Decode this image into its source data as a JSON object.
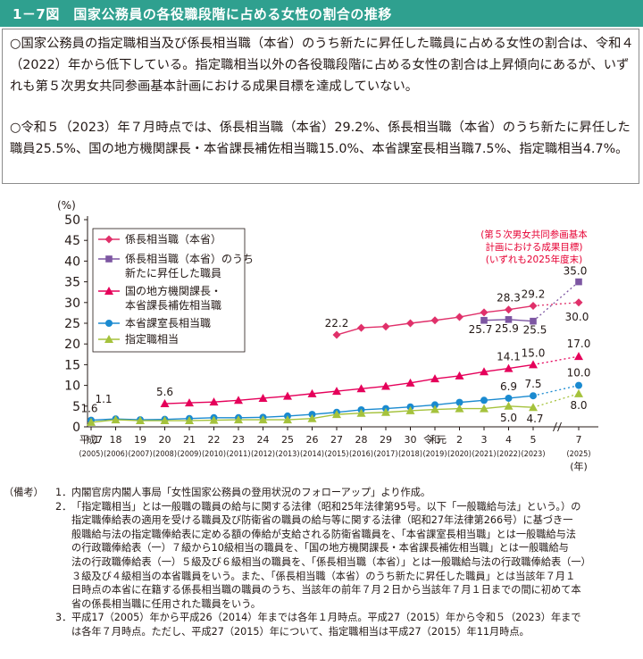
{
  "header": {
    "title": "1－7図　国家公務員の各役職段階に占める女性の割合の推移"
  },
  "summary": {
    "bullets": [
      "○国家公務員の指定職相当及び係長相当職（本省）のうち新たに昇任した職員に占める女性の割合は、令和４（2022）年から低下している。指定職相当以外の各役職段階に占める女性の割合は上昇傾向にあるが、いずれも第５次男女共同参画基本計画における成果目標を達成していない。",
      "○令和５（2023）年７月時点では、係長相当職（本省）29.2%、係長相当職（本省）のうち新たに昇任した職員25.5%、国の地方機関課長・本省課長補佐相当職15.0%、本省課室長相当職7.5%、指定職相当4.7%。"
    ]
  },
  "chart_data": {
    "type": "line",
    "ylabel": "(%)",
    "ylim": [
      0,
      50
    ],
    "yticks": [
      0,
      5,
      10,
      15,
      20,
      25,
      30,
      35,
      40,
      45,
      50
    ],
    "grid": false,
    "legend_position": "top-left",
    "x_labels_era": [
      "平成17",
      "18",
      "19",
      "20",
      "21",
      "22",
      "23",
      "24",
      "25",
      "26",
      "27",
      "28",
      "29",
      "30",
      "令和元",
      "2",
      "3",
      "4",
      "5",
      "7"
    ],
    "x_labels_year": [
      "(2005)",
      "(2006)",
      "(2007)",
      "(2008)",
      "(2009)",
      "(2010)",
      "(2011)",
      "(2012)",
      "(2013)",
      "(2014)",
      "(2015)",
      "(2016)",
      "(2017)",
      "(2018)",
      "(2019)",
      "(2020)",
      "(2021)",
      "(2022)",
      "(2023)",
      "(2025)"
    ],
    "x_unit_label": "(年)",
    "target_annotation": [
      "(第５次男女共同参画基本",
      "計画における成果目標)",
      "(いずれも2025年度末)"
    ],
    "series": [
      {
        "name": "係長相当職（本省）",
        "color": "#e0306a",
        "marker": "diamond",
        "values": [
          null,
          null,
          null,
          null,
          null,
          null,
          null,
          null,
          null,
          null,
          22.2,
          23.9,
          24.2,
          25.0,
          25.7,
          26.5,
          27.6,
          28.3,
          29.2,
          null
        ],
        "target": 30.0,
        "labels": [
          {
            "i": 10,
            "text": "22.2"
          },
          {
            "i": 17,
            "text": "28.3"
          },
          {
            "i": 18,
            "text": "29.2"
          }
        ],
        "target_label": "30.0"
      },
      {
        "name": "係長相当職（本省）のうち新たに昇任した職員",
        "color": "#7d56a2",
        "marker": "square",
        "values": [
          null,
          null,
          null,
          null,
          null,
          null,
          null,
          null,
          null,
          null,
          null,
          null,
          null,
          null,
          null,
          null,
          25.7,
          25.9,
          25.5,
          null
        ],
        "target": 35.0,
        "labels": [
          {
            "i": 16,
            "text": "25.7"
          },
          {
            "i": 17,
            "text": "25.9"
          },
          {
            "i": 18,
            "text": "25.5"
          }
        ],
        "target_label": "35.0"
      },
      {
        "name": "国の地方機関課長・本省課長補佐相当職",
        "color": "#e5005a",
        "marker": "triangle",
        "values": [
          null,
          null,
          null,
          5.6,
          5.8,
          6.0,
          6.4,
          6.9,
          7.4,
          8.0,
          8.6,
          9.2,
          9.8,
          10.6,
          11.6,
          12.3,
          13.3,
          14.1,
          15.0,
          null
        ],
        "target": 17.0,
        "labels": [
          {
            "i": 3,
            "text": "5.6"
          },
          {
            "i": 17,
            "text": "14.1"
          },
          {
            "i": 18,
            "text": "15.0"
          }
        ],
        "target_label": "17.0"
      },
      {
        "name": "本省課室長相当職",
        "color": "#1a8ad0",
        "marker": "circle",
        "values": [
          1.6,
          1.9,
          1.7,
          1.8,
          2.0,
          2.2,
          2.2,
          2.3,
          2.6,
          3.0,
          3.5,
          4.1,
          4.4,
          4.8,
          5.3,
          5.9,
          6.4,
          6.9,
          7.5,
          null
        ],
        "target": 10.0,
        "labels": [
          {
            "i": 0,
            "text": "1.6"
          },
          {
            "i": 17,
            "text": "6.9"
          },
          {
            "i": 18,
            "text": "7.5"
          }
        ],
        "target_label": "10.0"
      },
      {
        "name": "指定職相当",
        "color": "#a5c23c",
        "marker": "triangle",
        "values": [
          1.1,
          1.7,
          1.5,
          1.5,
          1.5,
          1.6,
          1.7,
          1.7,
          1.7,
          2.0,
          3.0,
          3.3,
          3.5,
          3.9,
          4.2,
          4.4,
          4.4,
          5.0,
          4.7,
          null
        ],
        "target": 8.0,
        "labels": [
          {
            "i": 0,
            "text": "1.1"
          },
          {
            "i": 17,
            "text": "5.0"
          },
          {
            "i": 18,
            "text": "4.7"
          }
        ],
        "target_label": "8.0"
      }
    ]
  },
  "notes": {
    "head": "（備考）",
    "items": [
      {
        "num": "1．",
        "lines": [
          "内閣官房内閣人事局「女性国家公務員の登用状況のフォローアップ」より作成。"
        ]
      },
      {
        "num": "2．",
        "lines": [
          "「指定職相当」とは一般職の職員の給与に関する法律（昭和25年法律第95号。以下「一般職給与法」という。）の",
          "指定職俸給表の適用を受ける職員及び防衛省の職員の給与等に関する法律（昭和27年法律第266号）に基づき一",
          "般職給与法の指定職俸給表に定める額の俸給が支給される防衛省職員を、「本省課室長相当職」とは一般職給与法",
          "の行政職俸給表（一）７級から10級相当の職員を、「国の地方機関課長・本省課長補佐相当職」とは一般職給与",
          "法の行政職俸給表（一）５級及び６級相当の職員を、「係長相当職（本省）」とは一般職給与法の行政職俸給表（一）",
          "３級及び４級相当の本省職員をいう。また、「係長相当職（本省）のうち新たに昇任した職員」とは当該年７月１",
          "日時点の本省に在籍する係長相当職の職員のうち、当該年の前年７月２日から当該年７月１日までの間に初めて本",
          "省の係長相当職に任用された職員をいう。"
        ]
      },
      {
        "num": "3．",
        "lines": [
          "平成17（2005）年から平成26（2014）年までは各年１月時点。平成27（2015）年から令和５（2023）年まで",
          "は各年７月時点。ただし、平成27（2015）年について、指定職相当は平成27（2015）年11月時点。"
        ]
      }
    ]
  }
}
